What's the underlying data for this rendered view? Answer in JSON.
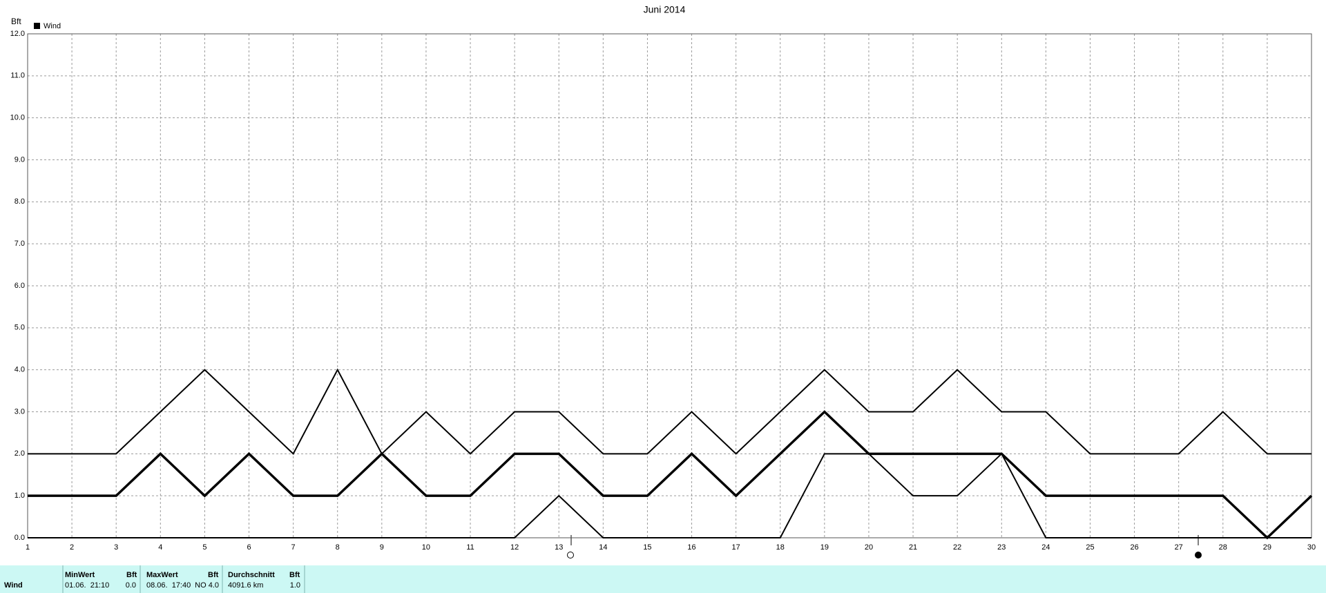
{
  "chart_data": {
    "type": "line",
    "title": "Juni 2014",
    "ylabel": "Bft",
    "x": [
      1,
      2,
      3,
      4,
      5,
      6,
      7,
      8,
      9,
      10,
      11,
      12,
      13,
      14,
      15,
      16,
      17,
      18,
      19,
      20,
      21,
      22,
      23,
      24,
      25,
      26,
      27,
      28,
      29,
      30
    ],
    "series": [
      {
        "name": "Wind",
        "color": "#000000",
        "values": [
          1,
          1,
          1,
          2,
          1,
          2,
          1,
          1,
          2,
          1,
          1,
          2,
          2,
          1,
          1,
          2,
          1,
          2,
          3,
          2,
          2,
          2,
          2,
          1,
          1,
          1,
          1,
          1,
          0,
          1
        ]
      },
      {
        "color": "#000000",
        "values": [
          2,
          2,
          2,
          3,
          4,
          3,
          2,
          4,
          2,
          3,
          2,
          3,
          3,
          2,
          2,
          3,
          2,
          3,
          4,
          3,
          3,
          4,
          3,
          3,
          2,
          2,
          2,
          3,
          2,
          2
        ]
      },
      {
        "color": "#000000",
        "values": [
          0,
          0,
          0,
          0,
          0,
          0,
          0,
          0,
          0,
          0,
          0,
          0,
          1,
          0,
          0,
          0,
          0,
          0,
          2,
          2,
          1,
          1,
          2,
          0,
          0,
          0,
          0,
          0,
          0,
          0
        ]
      }
    ],
    "xlim": [
      1,
      30
    ],
    "xticks": [
      1,
      2,
      3,
      4,
      5,
      6,
      7,
      8,
      9,
      10,
      11,
      12,
      13,
      14,
      15,
      16,
      17,
      18,
      19,
      20,
      21,
      22,
      23,
      24,
      25,
      26,
      27,
      28,
      29,
      30
    ],
    "ylim": [
      0,
      12
    ],
    "yticks": [
      {
        "value": 0,
        "label": "0.0"
      },
      {
        "value": 1,
        "label": "1.0"
      },
      {
        "value": 2,
        "label": "2.0"
      },
      {
        "value": 3,
        "label": "3.0"
      },
      {
        "value": 4,
        "label": "4.0"
      },
      {
        "value": 5,
        "label": "5.0"
      },
      {
        "value": 6,
        "label": "6.0"
      },
      {
        "value": 7,
        "label": "7.0"
      },
      {
        "value": 8,
        "label": "8.0"
      },
      {
        "value": 9,
        "label": "9.0"
      },
      {
        "value": 10,
        "label": "10.0"
      },
      {
        "value": 11,
        "label": "11.0"
      },
      {
        "value": 12,
        "label": "12.0"
      }
    ],
    "grid": true,
    "legend": "top-left"
  },
  "table": {
    "row_label": "Wind",
    "header": [
      "MinWert",
      "Bft",
      "MaxWert",
      "Bft",
      "Durchschnitt",
      "Bft"
    ],
    "cells": [
      "01.06.  21:10",
      "0.0",
      "08.06.  17:40",
      "NO 4.0",
      "4091.6 km",
      "1.0"
    ]
  }
}
